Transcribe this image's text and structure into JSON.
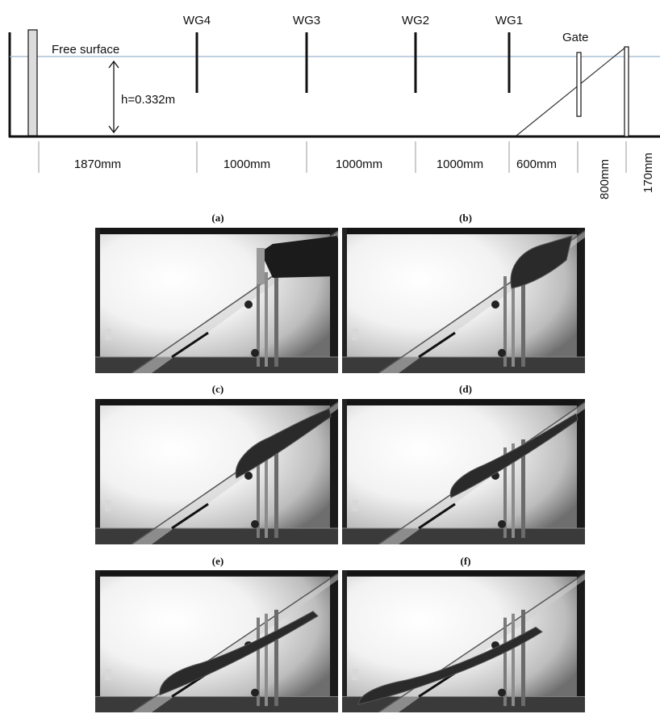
{
  "schematic": {
    "gauges": [
      "WG4",
      "WG3",
      "WG2",
      "WG1"
    ],
    "gate_label": "Gate",
    "free_surface_label": "Free surface",
    "depth_label": "h=0.332m",
    "dimensions": [
      "1870mm",
      "1000mm",
      "1000mm",
      "1000mm",
      "600mm",
      "800mm",
      "170mm"
    ]
  },
  "panels": [
    {
      "label": "(a)",
      "pile_state": "held behind gate"
    },
    {
      "label": "(b)",
      "pile_state": "front released near gate"
    },
    {
      "label": "(c)",
      "pile_state": "sliding down slope"
    },
    {
      "label": "(d)",
      "pile_state": "front reaching mid-slope"
    },
    {
      "label": "(e)",
      "pile_state": "front near base of slope"
    },
    {
      "label": "(f)",
      "pile_state": "front spreading on floor"
    }
  ],
  "colors": {
    "free_surface": "#9ab3c9",
    "ink": "#111111"
  }
}
